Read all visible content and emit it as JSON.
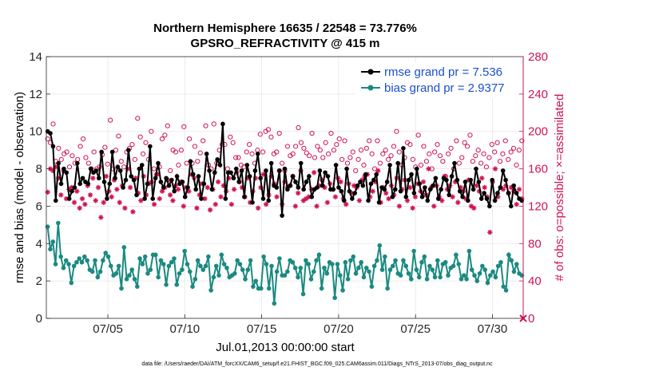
{
  "chart_data": {
    "type": "line",
    "title": "Northern Hemisphere 16635 / 22548 = 73.776%",
    "subtitle": "GPSRO_REFRACTIVITY @ 415 m",
    "xlabel": "Jul.01,2013 00:00:00 start",
    "ylabel_left": "rmse and bias (model - observation)",
    "ylabel_right": "# of obs: o=possible; ×=assimilated",
    "footnote": "data file: /Users/raeder/DAI/ATM_forcXX/CAM6_setup/f.e21.FHIST_BGC.f09_025.CAM6assim.011/Diags_NTrS_2013-07/obs_diag_output.nc",
    "x_unit": "day of July 2013 (1.0 = Jul 01 00:00)",
    "xlim": [
      1,
      32
    ],
    "ylim_left": [
      0,
      14
    ],
    "ylim_right": [
      0,
      280
    ],
    "yticks_left": [
      0,
      2,
      4,
      6,
      8,
      10,
      12,
      14
    ],
    "yticks_right": [
      0,
      40,
      80,
      120,
      160,
      200,
      240,
      280
    ],
    "xticks": [
      5,
      10,
      15,
      20,
      25,
      30
    ],
    "xtick_labels": [
      "07/05",
      "07/10",
      "07/15",
      "07/20",
      "07/25",
      "07/30"
    ],
    "grid": true,
    "legend_position": "top-right",
    "colors": {
      "rmse": "#000000",
      "bias": "#1a8a80",
      "obs": "#d01452",
      "legend_text": "#1a4fcc",
      "right_axis": "#d01452"
    },
    "series": [
      {
        "name": "rmse grand pr = 7.536",
        "axis": "left",
        "values": [
          10.0,
          9.9,
          9.2,
          6.3,
          8.3,
          7.2,
          8.0,
          7.8,
          6.4,
          6.8,
          7.0,
          8.3,
          7.2,
          7.5,
          7.3,
          7.2,
          8.0,
          7.8,
          7.9,
          7.5,
          8.9,
          7.3,
          6.4,
          7.2,
          8.9,
          7.5,
          8.1,
          7.9,
          7.0,
          7.4,
          9.0,
          7.6,
          7.4,
          6.6,
          8.0,
          8.2,
          6.4,
          7.2,
          9.2,
          6.4,
          7.5,
          8.3,
          7.3,
          7.0,
          7.5,
          7.1,
          7.4,
          6.8,
          7.6,
          7.2,
          7.3,
          6.5,
          7.0,
          8.4,
          7.7,
          6.9,
          7.6,
          6.4,
          7.2,
          8.8,
          7.9,
          6.9,
          7.8,
          8.5,
          8.2,
          10.4,
          6.4,
          7.8,
          7.8,
          7.5,
          8.0,
          7.3,
          7.9,
          6.5,
          8.2,
          7.6,
          6.2,
          7.9,
          8.8,
          7.5,
          6.4,
          7.9,
          6.3,
          8.3,
          7.1,
          7.0,
          7.9,
          5.5,
          8.0,
          6.9,
          7.1,
          7.6,
          7.3,
          7.0,
          8.3,
          6.9,
          7.3,
          7.6,
          6.5,
          6.9,
          7.0,
          7.9,
          7.1,
          7.8,
          7.6,
          6.9,
          6.9,
          8.2,
          7.0,
          6.8,
          6.3,
          8.0,
          6.8,
          6.4,
          6.7,
          7.1,
          7.3,
          7.1,
          7.7,
          6.3,
          7.2,
          7.4,
          7.7,
          6.2,
          7.0,
          6.9,
          7.3,
          8.2,
          6.5,
          6.9,
          8.3,
          6.8,
          9.1,
          6.5,
          7.4,
          7.7,
          6.7,
          8.0,
          7.2,
          6.5,
          7.0,
          6.3,
          6.9,
          7.1,
          7.5,
          6.4,
          6.9,
          7.5,
          7.4,
          6.6,
          7.6,
          8.3,
          7.4,
          6.8,
          6.5,
          7.3,
          6.3,
          7.4,
          6.9,
          8.0,
          7.3,
          6.4,
          6.7,
          6.4,
          6.0,
          7.4,
          6.3,
          6.7,
          7.0,
          7.9,
          7.4,
          6.7,
          6.0,
          7.1,
          6.7,
          6.4,
          6.3
        ]
      },
      {
        "name": "bias grand pr = 2.9377",
        "axis": "left",
        "values": [
          4.9,
          3.7,
          4.1,
          2.9,
          5.1,
          3.3,
          2.7,
          3.1,
          2.9,
          1.9,
          2.8,
          3.0,
          3.2,
          3.0,
          3.3,
          3.1,
          2.6,
          2.5,
          3.1,
          2.2,
          2.5,
          3.1,
          3.5,
          3.3,
          2.8,
          2.3,
          2.4,
          2.8,
          1.6,
          3.8,
          2.1,
          2.3,
          2.6,
          2.1,
          1.7,
          3.2,
          2.9,
          3.3,
          2.4,
          2.6,
          3.4,
          3.4,
          2.2,
          3.1,
          2.9,
          1.8,
          2.8,
          3.0,
          3.2,
          1.8,
          2.4,
          2.6,
          3.6,
          2.9,
          2.5,
          1.7,
          2.1,
          3.1,
          2.8,
          2.6,
          2.8,
          3.3,
          1.5,
          2.2,
          2.8,
          2.3,
          3.4,
          2.9,
          2.7,
          2.2,
          2.3,
          2.4,
          3.1,
          2.9,
          2.6,
          2.1,
          2.6,
          3.1,
          1.7,
          2.0,
          1.6,
          1.6,
          3.3,
          2.9,
          1.6,
          2.8,
          0.8,
          2.5,
          3.2,
          2.3,
          2.3,
          2.5,
          3.1,
          3.0,
          2.7,
          2.2,
          2.7,
          1.3,
          3.1,
          2.9,
          2.1,
          2.5,
          3.1,
          3.4,
          1.6,
          2.7,
          2.4,
          3.0,
          2.9,
          1.1,
          2.9,
          2.3,
          1.5,
          3.0,
          2.1,
          3.1,
          3.3,
          2.4,
          2.7,
          3.0,
          2.2,
          2.7,
          2.5,
          1.7,
          2.8,
          3.1,
          3.9,
          2.6,
          3.3,
          1.6,
          2.6,
          2.8,
          3.1,
          2.4,
          2.3,
          3.1,
          2.8,
          2.4,
          2.1,
          3.6,
          2.6,
          2.2,
          3.0,
          3.3,
          2.1,
          2.8,
          2.6,
          2.2,
          3.1,
          2.2,
          2.9,
          3.0,
          2.3,
          2.7,
          2.8,
          3.4,
          2.9,
          2.1,
          2.3,
          2.1,
          3.6,
          2.6,
          2.3,
          2.0,
          2.4,
          2.8,
          2.6,
          1.9,
          2.3,
          2.5,
          2.2,
          2.8,
          3.0,
          1.7,
          1.5,
          3.4,
          3.1,
          2.5,
          2.9,
          2.4,
          2.3
        ]
      },
      {
        "name": "possible",
        "axis": "right",
        "values": [
          192,
          188,
          208,
          168,
          182,
          170,
          176,
          178,
          162,
          174,
          166,
          170,
          184,
          192,
          172,
          166,
          160,
          178,
          160,
          162,
          175,
          183,
          165,
          212,
          160,
          180,
          195,
          168,
          162,
          178,
          182,
          186,
          170,
          214,
          194,
          176,
          188,
          170,
          200,
          160,
          154,
          162,
          192,
          196,
          206,
          158,
          180,
          178,
          164,
          180,
          205,
          166,
          192,
          166,
          184,
          168,
          177,
          190,
          206,
          164,
          160,
          208,
          166,
          180,
          186,
          186,
          160,
          194,
          188,
          172,
          172,
          164,
          162,
          178,
          186,
          176,
          166,
          180,
          197,
          178,
          200,
          202,
          194,
          176,
          178,
          198,
          166,
          158,
          184,
          174,
          176,
          184,
          204,
          188,
          182,
          177,
          174,
          198,
          172,
          184,
          180,
          172,
          188,
          176,
          198,
          180,
          186,
          192,
          170,
          190,
          166,
          172,
          178,
          158,
          170,
          180,
          164,
          182,
          190,
          176,
          160,
          190,
          166,
          176,
          180,
          170,
          174,
          184,
          200,
          178,
          164,
          172,
          188,
          186,
          170,
          162,
          196,
          164,
          184,
          168,
          176,
          160,
          178,
          186,
          174,
          168,
          152,
          176,
          182,
          160,
          190,
          166,
          172,
          188,
          184,
          196,
          168,
          174,
          180,
          166,
          176,
          162,
          172,
          186,
          178,
          188,
          168,
          176,
          190,
          170,
          178,
          182,
          164,
          180,
          190
        ]
      },
      {
        "name": "assimilated",
        "axis": "right",
        "values": [
          135,
          160,
          158,
          162,
          150,
          132,
          158,
          128,
          138,
          140,
          124,
          136,
          118,
          128,
          122,
          142,
          132,
          150,
          126,
          140,
          108,
          124,
          152,
          136,
          130,
          148,
          138,
          124,
          142,
          118,
          160,
          140,
          114,
          150,
          134,
          126,
          152,
          132,
          144,
          146,
          122,
          154,
          128,
          136,
          140,
          148,
          132,
          126,
          142,
          138,
          146,
          120,
          140,
          136,
          154,
          150,
          118,
          132,
          144,
          128,
          140,
          116,
          138,
          122,
          146,
          130,
          142,
          136,
          150,
          122,
          138,
          156,
          146,
          140,
          130,
          150,
          124,
          136,
          150,
          118,
          140,
          154,
          122,
          132,
          152,
          144,
          130,
          158,
          122,
          146,
          140,
          142,
          152,
          120,
          134,
          158,
          126,
          128,
          130,
          138,
          156,
          120,
          142,
          148,
          140,
          124,
          144,
          138,
          130,
          150,
          146,
          128,
          122,
          144,
          134,
          142,
          140,
          126,
          148,
          152,
          154,
          130,
          136,
          146,
          158,
          124,
          140,
          134,
          128,
          142,
          132,
          150,
          120,
          138,
          148,
          126,
          140,
          118,
          130,
          144,
          136,
          146,
          132,
          160,
          140,
          120,
          142,
          130,
          126,
          152,
          138,
          142,
          130,
          146,
          124,
          140,
          136,
          128,
          148,
          120,
          118,
          142,
          136,
          150,
          140,
          130,
          92,
          146,
          160,
          130,
          140,
          138,
          142,
          134,
          140,
          136,
          122,
          138,
          128
        ]
      }
    ]
  }
}
